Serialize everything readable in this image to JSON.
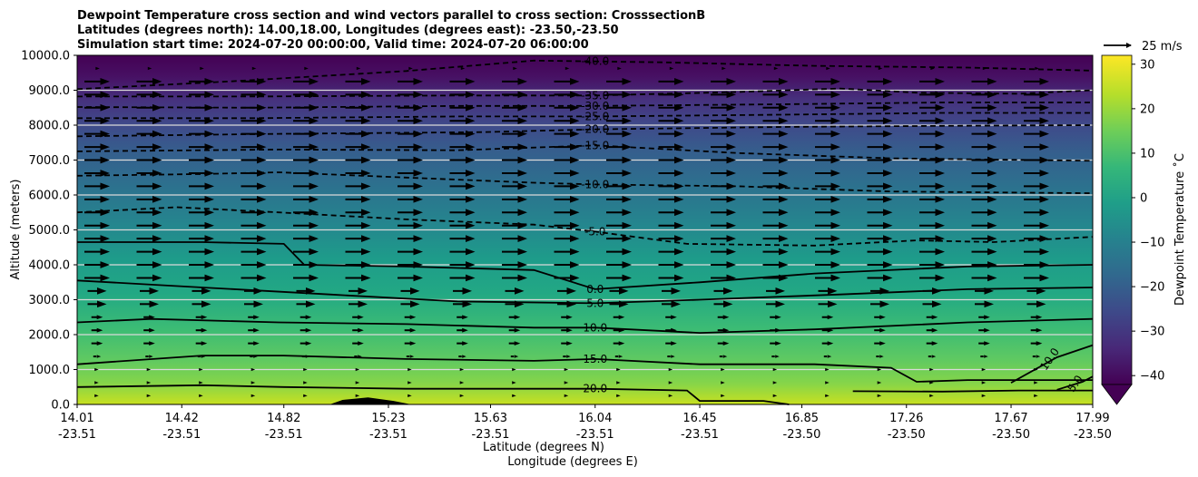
{
  "chart_data": {
    "type": "heatmap",
    "title_lines": [
      "Dewpoint Temperature cross section and wind vectors parallel to cross section: CrosssectionB",
      "Latitudes (degrees north): 14.00,18.00, Longitudes (degrees east): -23.50,-23.50",
      "Simulation start time: 2024-07-20 00:00:00, Valid time: 2024-07-20 06:00:00"
    ],
    "xlabel_lat": "Latitude (degrees N)",
    "xlabel_lon": "Longitude (degrees E)",
    "ylabel": "Altitude (meters)",
    "x_ticks": [
      {
        "lat": "14.01",
        "lon": "-23.51"
      },
      {
        "lat": "14.42",
        "lon": "-23.51"
      },
      {
        "lat": "14.82",
        "lon": "-23.51"
      },
      {
        "lat": "15.23",
        "lon": "-23.51"
      },
      {
        "lat": "15.63",
        "lon": "-23.51"
      },
      {
        "lat": "16.04",
        "lon": "-23.51"
      },
      {
        "lat": "16.45",
        "lon": "-23.51"
      },
      {
        "lat": "16.85",
        "lon": "-23.50"
      },
      {
        "lat": "17.26",
        "lon": "-23.50"
      },
      {
        "lat": "17.67",
        "lon": "-23.50"
      },
      {
        "lat": "17.99",
        "lon": "-23.50"
      }
    ],
    "xlim": [
      14.01,
      17.99
    ],
    "ylim": [
      0,
      10000
    ],
    "y_ticks": [
      "0.0",
      "1000.0",
      "2000.0",
      "3000.0",
      "4000.0",
      "5000.0",
      "6000.0",
      "7000.0",
      "8000.0",
      "9000.0",
      "10000.0"
    ],
    "colorbar": {
      "label": "Dewpoint Temperature ˚C",
      "ticks": [
        "30",
        "20",
        "10",
        "0",
        "−10",
        "−20",
        "−30",
        "−40"
      ],
      "range": [
        -42,
        32
      ],
      "extend": "min",
      "colormap": "viridis"
    },
    "quiver_key": {
      "label": "25 m/s",
      "value": 25
    },
    "grid": "horizontal",
    "contours": [
      {
        "level": -40,
        "label": "-40.0",
        "style": "dashed",
        "points": [
          [
            14.01,
            9030
          ],
          [
            14.6,
            9250
          ],
          [
            15.3,
            9550
          ],
          [
            15.8,
            9850
          ],
          [
            16.3,
            9800
          ],
          [
            16.9,
            9700
          ],
          [
            17.5,
            9650
          ],
          [
            17.99,
            9560
          ]
        ]
      },
      {
        "level": -35,
        "label": "-35.0",
        "style": "dashed",
        "points": [
          [
            14.01,
            8820
          ],
          [
            14.7,
            8820
          ],
          [
            15.5,
            8850
          ],
          [
            16.04,
            8850
          ],
          [
            16.6,
            8950
          ],
          [
            17.0,
            9050
          ],
          [
            17.3,
            8930
          ],
          [
            17.7,
            8900
          ],
          [
            17.99,
            9000
          ]
        ]
      },
      {
        "level": -30,
        "label": "-30.0",
        "style": "dashed",
        "points": [
          [
            14.01,
            8520
          ],
          [
            14.7,
            8500
          ],
          [
            15.5,
            8550
          ],
          [
            16.04,
            8550
          ],
          [
            16.8,
            8600
          ],
          [
            17.4,
            8650
          ],
          [
            17.99,
            8650
          ]
        ]
      },
      {
        "level": -25,
        "label": "-25.0",
        "style": "dashed",
        "points": [
          [
            14.01,
            8200
          ],
          [
            14.7,
            8200
          ],
          [
            15.5,
            8250
          ],
          [
            16.04,
            8250
          ],
          [
            16.8,
            8300
          ],
          [
            17.4,
            8350
          ],
          [
            17.99,
            8350
          ]
        ]
      },
      {
        "level": -20,
        "label": "-20.0",
        "style": "dashed",
        "points": [
          [
            14.01,
            7680
          ],
          [
            14.8,
            7750
          ],
          [
            15.6,
            7800
          ],
          [
            16.04,
            7880
          ],
          [
            16.8,
            7950
          ],
          [
            17.4,
            7980
          ],
          [
            17.99,
            8000
          ]
        ]
      },
      {
        "level": -15,
        "label": "-15.0",
        "style": "dashed",
        "points": [
          [
            14.01,
            7250
          ],
          [
            14.8,
            7300
          ],
          [
            15.5,
            7280
          ],
          [
            16.04,
            7420
          ],
          [
            16.6,
            7200
          ],
          [
            17.2,
            7050
          ],
          [
            17.99,
            6980
          ]
        ]
      },
      {
        "level": -10,
        "label": "-10.0",
        "style": "dashed",
        "points": [
          [
            14.01,
            6550
          ],
          [
            14.5,
            6600
          ],
          [
            14.8,
            6650
          ],
          [
            15.3,
            6500
          ],
          [
            15.8,
            6350
          ],
          [
            16.04,
            6300
          ],
          [
            16.6,
            6250
          ],
          [
            17.2,
            6100
          ],
          [
            17.99,
            6050
          ]
        ]
      },
      {
        "level": -5,
        "label": "-5.0",
        "style": "dashed",
        "points": [
          [
            14.01,
            5500
          ],
          [
            14.4,
            5650
          ],
          [
            14.8,
            5500
          ],
          [
            15.3,
            5300
          ],
          [
            15.8,
            5150
          ],
          [
            16.04,
            4950
          ],
          [
            16.4,
            4600
          ],
          [
            16.9,
            4550
          ],
          [
            17.3,
            4700
          ],
          [
            17.6,
            4650
          ],
          [
            17.99,
            4800
          ]
        ]
      },
      {
        "level": 0,
        "label": "0.0",
        "style": "solid",
        "points": [
          [
            14.01,
            4650
          ],
          [
            14.5,
            4650
          ],
          [
            14.82,
            4600
          ],
          [
            14.9,
            4000
          ],
          [
            15.3,
            3950
          ],
          [
            15.8,
            3850
          ],
          [
            16.04,
            3300
          ],
          [
            16.45,
            3500
          ],
          [
            16.9,
            3750
          ],
          [
            17.5,
            3950
          ],
          [
            17.99,
            4000
          ]
        ]
      },
      {
        "level": 5,
        "label": "5.0",
        "style": "solid",
        "points": [
          [
            14.01,
            3550
          ],
          [
            14.5,
            3350
          ],
          [
            15.0,
            3150
          ],
          [
            15.5,
            2950
          ],
          [
            16.04,
            2900
          ],
          [
            16.45,
            3000
          ],
          [
            17.0,
            3150
          ],
          [
            17.5,
            3300
          ],
          [
            17.99,
            3350
          ]
        ]
      },
      {
        "level": 10,
        "label": "10.0",
        "style": "solid",
        "points": [
          [
            14.01,
            2350
          ],
          [
            14.3,
            2450
          ],
          [
            14.8,
            2350
          ],
          [
            15.3,
            2300
          ],
          [
            15.8,
            2200
          ],
          [
            16.04,
            2200
          ],
          [
            16.45,
            2050
          ],
          [
            16.9,
            2150
          ],
          [
            17.5,
            2350
          ],
          [
            17.99,
            2450
          ]
        ]
      },
      {
        "level": 15,
        "label": "15.0",
        "style": "solid",
        "points": [
          [
            14.01,
            1150
          ],
          [
            14.5,
            1400
          ],
          [
            14.82,
            1400
          ],
          [
            15.3,
            1300
          ],
          [
            15.8,
            1250
          ],
          [
            16.04,
            1300
          ],
          [
            16.45,
            1150
          ],
          [
            16.9,
            1150
          ],
          [
            17.2,
            1050
          ],
          [
            17.3,
            650
          ],
          [
            17.5,
            700
          ],
          [
            17.99,
            700
          ]
        ]
      },
      {
        "level": 20,
        "label": "20.0",
        "style": "solid",
        "points": [
          [
            14.01,
            500
          ],
          [
            14.5,
            550
          ],
          [
            14.82,
            500
          ],
          [
            15.3,
            450
          ],
          [
            15.63,
            450
          ],
          [
            16.04,
            450
          ],
          [
            16.4,
            400
          ],
          [
            16.45,
            100
          ],
          [
            16.7,
            100
          ],
          [
            16.8,
            0
          ]
        ]
      },
      {
        "level": 15,
        "label": "",
        "style": "solid",
        "points": [
          [
            17.05,
            380
          ],
          [
            17.4,
            370
          ],
          [
            17.7,
            400
          ],
          [
            17.99,
            400
          ]
        ]
      },
      {
        "level": 10,
        "label": "10.0",
        "style": "solid",
        "points": [
          [
            17.67,
            620
          ],
          [
            17.85,
            1350
          ],
          [
            17.99,
            1700
          ]
        ]
      },
      {
        "level": 5,
        "label": "5.0",
        "style": "solid",
        "points": [
          [
            17.85,
            420
          ],
          [
            17.95,
            650
          ],
          [
            17.99,
            800
          ]
        ]
      }
    ],
    "wind": "eastward vectors parallel to cross section, strongest 4000-9000 m, weak below 2000 m",
    "terrain": [
      [
        15.0,
        0
      ],
      [
        15.05,
        130
      ],
      [
        15.15,
        200
      ],
      [
        15.25,
        100
      ],
      [
        15.32,
        0
      ]
    ]
  }
}
